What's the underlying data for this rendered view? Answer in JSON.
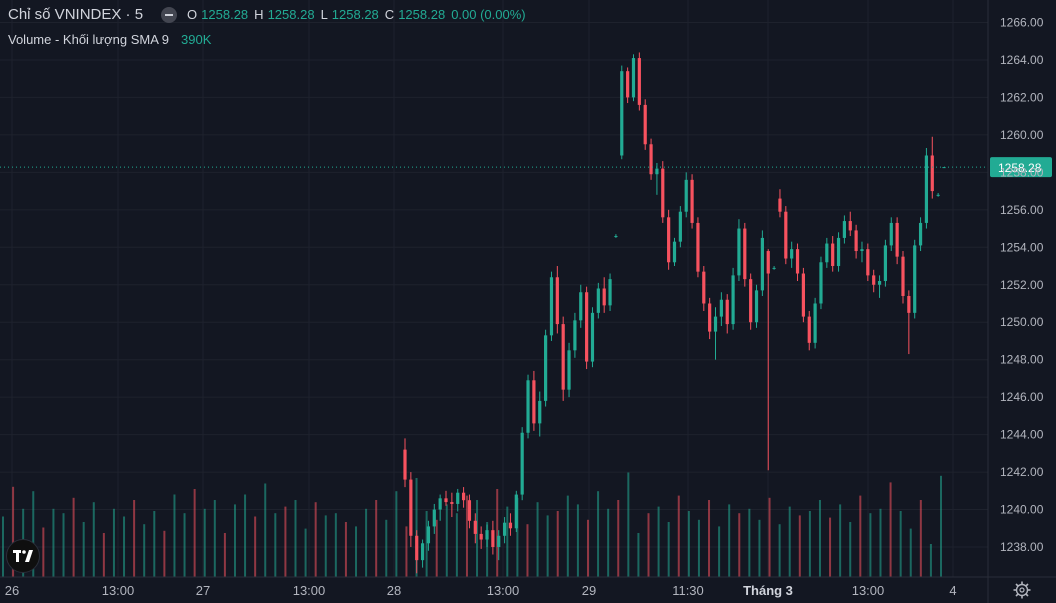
{
  "legend": {
    "title": "Chỉ số VNINDEX · 5",
    "open_label": "O",
    "open": "1258.28",
    "high_label": "H",
    "high": "1258.28",
    "low_label": "L",
    "low": "1258.28",
    "close_label": "C",
    "close": "1258.28",
    "change": "0.00 (0.00%)"
  },
  "volume_legend": {
    "label": "Volume - Khối lượng SMA 9",
    "value": "390K"
  },
  "price_scale": {
    "ticks": [
      "1266.00",
      "1264.00",
      "1262.00",
      "1260.00",
      "1258.00",
      "1256.00",
      "1254.00",
      "1252.00",
      "1250.00",
      "1248.00",
      "1246.00",
      "1244.00",
      "1242.00",
      "1240.00",
      "1238.00"
    ],
    "last_price": "1258.28"
  },
  "time_scale": {
    "labels": [
      "26",
      "13:00",
      "27",
      "13:00",
      "28",
      "13:00",
      "29",
      "11:30",
      "Tháng 3",
      "13:00",
      "4"
    ]
  },
  "colors": {
    "up": "#22ab94",
    "down": "#f7525f",
    "bg": "#131722",
    "grid": "#1e222d",
    "text": "#b2b5be",
    "price_label_bg": "#22ab94"
  },
  "icons": {
    "logo": "tradingview-logo-icon",
    "settings": "gear-icon",
    "legend_toggle": "minus-circle-icon"
  },
  "chart_data": {
    "type": "candlestick",
    "title": "Chỉ số VNINDEX · 5",
    "ylim": [
      1236.4,
      1267.2
    ],
    "last_price": 1258.28,
    "series": [
      {
        "name": "VNINDEX"
      },
      {
        "name": "Volume"
      }
    ],
    "x_labels": [
      "26",
      "13:00",
      "27",
      "13:00",
      "28",
      "13:00",
      "29",
      "11:30",
      "Tháng 3",
      "13:00",
      "4"
    ],
    "candles": [
      {
        "o": 1243.2,
        "h": 1243.8,
        "l": 1241.2,
        "c": 1241.6
      },
      {
        "o": 1241.6,
        "h": 1242.0,
        "l": 1238.0,
        "c": 1238.6
      },
      {
        "o": 1238.6,
        "h": 1238.9,
        "l": 1236.6,
        "c": 1237.3
      },
      {
        "o": 1237.3,
        "h": 1238.4,
        "l": 1236.9,
        "c": 1238.2
      },
      {
        "o": 1238.2,
        "h": 1239.4,
        "l": 1237.8,
        "c": 1239.1
      },
      {
        "o": 1239.1,
        "h": 1240.3,
        "l": 1238.7,
        "c": 1240.0
      },
      {
        "o": 1240.0,
        "h": 1240.8,
        "l": 1239.4,
        "c": 1240.6
      },
      {
        "o": 1240.6,
        "h": 1241.0,
        "l": 1240.2,
        "c": 1240.4
      },
      {
        "o": 1240.4,
        "h": 1240.9,
        "l": 1239.6,
        "c": 1240.3
      },
      {
        "o": 1240.3,
        "h": 1241.1,
        "l": 1239.9,
        "c": 1240.9
      },
      {
        "o": 1240.9,
        "h": 1241.2,
        "l": 1240.1,
        "c": 1240.5
      },
      {
        "o": 1240.5,
        "h": 1240.8,
        "l": 1239.0,
        "c": 1239.4
      },
      {
        "o": 1239.4,
        "h": 1239.8,
        "l": 1238.2,
        "c": 1238.7
      },
      {
        "o": 1238.7,
        "h": 1239.1,
        "l": 1237.9,
        "c": 1238.4
      },
      {
        "o": 1238.4,
        "h": 1239.2,
        "l": 1238.0,
        "c": 1238.9
      },
      {
        "o": 1238.9,
        "h": 1239.4,
        "l": 1237.6,
        "c": 1238.0
      },
      {
        "o": 1238.0,
        "h": 1238.9,
        "l": 1237.3,
        "c": 1238.6
      },
      {
        "o": 1238.6,
        "h": 1239.6,
        "l": 1238.2,
        "c": 1239.3
      },
      {
        "o": 1239.3,
        "h": 1239.8,
        "l": 1238.6,
        "c": 1239.0
      },
      {
        "o": 1239.0,
        "h": 1241.0,
        "l": 1238.8,
        "c": 1240.8
      },
      {
        "o": 1240.8,
        "h": 1244.4,
        "l": 1240.5,
        "c": 1244.1
      },
      {
        "o": 1244.1,
        "h": 1247.2,
        "l": 1243.8,
        "c": 1246.9
      },
      {
        "o": 1246.9,
        "h": 1247.4,
        "l": 1244.2,
        "c": 1244.6
      },
      {
        "o": 1244.6,
        "h": 1246.3,
        "l": 1243.9,
        "c": 1245.8
      },
      {
        "o": 1245.8,
        "h": 1249.6,
        "l": 1245.5,
        "c": 1249.3
      },
      {
        "o": 1249.3,
        "h": 1252.7,
        "l": 1249.0,
        "c": 1252.4
      },
      {
        "o": 1252.4,
        "h": 1253.0,
        "l": 1249.4,
        "c": 1249.9
      },
      {
        "o": 1249.9,
        "h": 1250.3,
        "l": 1245.8,
        "c": 1246.4
      },
      {
        "o": 1246.4,
        "h": 1248.9,
        "l": 1246.0,
        "c": 1248.5
      },
      {
        "o": 1248.5,
        "h": 1250.5,
        "l": 1248.1,
        "c": 1250.1
      },
      {
        "o": 1250.1,
        "h": 1252.0,
        "l": 1249.7,
        "c": 1251.6
      },
      {
        "o": 1251.6,
        "h": 1251.9,
        "l": 1247.5,
        "c": 1247.9
      },
      {
        "o": 1247.9,
        "h": 1250.8,
        "l": 1247.6,
        "c": 1250.5
      },
      {
        "o": 1250.5,
        "h": 1252.1,
        "l": 1250.2,
        "c": 1251.8
      },
      {
        "o": 1251.8,
        "h": 1252.4,
        "l": 1250.5,
        "c": 1250.9
      },
      {
        "o": 1250.9,
        "h": 1252.6,
        "l": 1250.6,
        "c": 1252.3
      },
      {
        "o": 1254.6,
        "h": 1254.7,
        "l": 1254.5,
        "c": 1254.6
      },
      {
        "o": 1258.9,
        "h": 1263.7,
        "l": 1258.7,
        "c": 1263.4
      },
      {
        "o": 1263.4,
        "h": 1263.6,
        "l": 1261.7,
        "c": 1262.0
      },
      {
        "o": 1262.0,
        "h": 1264.3,
        "l": 1261.8,
        "c": 1264.1
      },
      {
        "o": 1264.1,
        "h": 1264.4,
        "l": 1261.3,
        "c": 1261.6
      },
      {
        "o": 1261.6,
        "h": 1261.9,
        "l": 1259.2,
        "c": 1259.5
      },
      {
        "o": 1259.5,
        "h": 1259.8,
        "l": 1257.6,
        "c": 1257.9
      },
      {
        "o": 1257.9,
        "h": 1258.5,
        "l": 1256.8,
        "c": 1258.2
      },
      {
        "o": 1258.2,
        "h": 1258.6,
        "l": 1255.3,
        "c": 1255.6
      },
      {
        "o": 1255.6,
        "h": 1256.0,
        "l": 1252.8,
        "c": 1253.2
      },
      {
        "o": 1253.2,
        "h": 1254.5,
        "l": 1253.0,
        "c": 1254.3
      },
      {
        "o": 1254.3,
        "h": 1256.2,
        "l": 1254.0,
        "c": 1255.9
      },
      {
        "o": 1255.9,
        "h": 1258.0,
        "l": 1255.6,
        "c": 1257.6
      },
      {
        "o": 1257.6,
        "h": 1257.9,
        "l": 1255.0,
        "c": 1255.3
      },
      {
        "o": 1255.3,
        "h": 1255.6,
        "l": 1252.4,
        "c": 1252.7
      },
      {
        "o": 1252.7,
        "h": 1253.0,
        "l": 1250.6,
        "c": 1251.0
      },
      {
        "o": 1251.0,
        "h": 1251.3,
        "l": 1249.1,
        "c": 1249.5
      },
      {
        "o": 1249.5,
        "h": 1250.8,
        "l": 1248.0,
        "c": 1250.3
      },
      {
        "o": 1250.3,
        "h": 1251.6,
        "l": 1249.8,
        "c": 1251.2
      },
      {
        "o": 1251.2,
        "h": 1251.5,
        "l": 1249.4,
        "c": 1249.9
      },
      {
        "o": 1249.9,
        "h": 1252.9,
        "l": 1249.6,
        "c": 1252.5
      },
      {
        "o": 1252.5,
        "h": 1255.5,
        "l": 1252.2,
        "c": 1255.0
      },
      {
        "o": 1255.0,
        "h": 1255.3,
        "l": 1251.9,
        "c": 1252.3
      },
      {
        "o": 1252.3,
        "h": 1252.6,
        "l": 1249.6,
        "c": 1250.0
      },
      {
        "o": 1250.0,
        "h": 1252.0,
        "l": 1249.7,
        "c": 1251.7
      },
      {
        "o": 1251.7,
        "h": 1254.9,
        "l": 1251.4,
        "c": 1254.5
      },
      {
        "o": 1253.8,
        "h": 1253.9,
        "l": 1242.1,
        "c": 1252.6
      },
      {
        "o": 1252.9,
        "h": 1253.0,
        "l": 1252.8,
        "c": 1252.9
      },
      {
        "o": 1256.6,
        "h": 1257.1,
        "l": 1255.6,
        "c": 1255.9
      },
      {
        "o": 1255.9,
        "h": 1256.2,
        "l": 1253.1,
        "c": 1253.4
      },
      {
        "o": 1253.4,
        "h": 1254.3,
        "l": 1252.9,
        "c": 1253.9
      },
      {
        "o": 1253.9,
        "h": 1254.2,
        "l": 1252.2,
        "c": 1252.6
      },
      {
        "o": 1252.6,
        "h": 1252.9,
        "l": 1250.0,
        "c": 1250.3
      },
      {
        "o": 1250.3,
        "h": 1250.6,
        "l": 1248.5,
        "c": 1248.9
      },
      {
        "o": 1248.9,
        "h": 1251.3,
        "l": 1248.6,
        "c": 1251.0
      },
      {
        "o": 1251.0,
        "h": 1253.5,
        "l": 1250.7,
        "c": 1253.2
      },
      {
        "o": 1253.2,
        "h": 1254.5,
        "l": 1252.9,
        "c": 1254.2
      },
      {
        "o": 1254.2,
        "h": 1254.6,
        "l": 1252.7,
        "c": 1253.0
      },
      {
        "o": 1253.0,
        "h": 1254.8,
        "l": 1252.7,
        "c": 1254.5
      },
      {
        "o": 1254.5,
        "h": 1255.7,
        "l": 1254.2,
        "c": 1255.4
      },
      {
        "o": 1255.4,
        "h": 1255.9,
        "l": 1254.6,
        "c": 1254.9
      },
      {
        "o": 1254.9,
        "h": 1255.2,
        "l": 1253.4,
        "c": 1253.8
      },
      {
        "o": 1253.8,
        "h": 1254.3,
        "l": 1253.2,
        "c": 1253.9
      },
      {
        "o": 1253.9,
        "h": 1254.2,
        "l": 1252.2,
        "c": 1252.5
      },
      {
        "o": 1252.5,
        "h": 1252.8,
        "l": 1251.6,
        "c": 1252.0
      },
      {
        "o": 1252.0,
        "h": 1252.5,
        "l": 1251.3,
        "c": 1252.2
      },
      {
        "o": 1252.2,
        "h": 1254.4,
        "l": 1251.9,
        "c": 1254.1
      },
      {
        "o": 1254.1,
        "h": 1255.6,
        "l": 1253.8,
        "c": 1255.3
      },
      {
        "o": 1255.3,
        "h": 1255.6,
        "l": 1253.1,
        "c": 1253.5
      },
      {
        "o": 1253.5,
        "h": 1253.8,
        "l": 1251.0,
        "c": 1251.4
      },
      {
        "o": 1251.4,
        "h": 1251.7,
        "l": 1248.3,
        "c": 1250.5
      },
      {
        "o": 1250.5,
        "h": 1254.4,
        "l": 1250.2,
        "c": 1254.1
      },
      {
        "o": 1254.1,
        "h": 1255.6,
        "l": 1253.8,
        "c": 1255.3
      },
      {
        "o": 1255.3,
        "h": 1259.3,
        "l": 1255.0,
        "c": 1258.9
      },
      {
        "o": 1258.9,
        "h": 1259.9,
        "l": 1256.6,
        "c": 1257.0
      },
      {
        "o": 1256.8,
        "h": 1256.9,
        "l": 1256.7,
        "c": 1256.8
      },
      {
        "o": 1258.28,
        "h": 1258.28,
        "l": 1258.28,
        "c": 1258.28
      }
    ],
    "volume_relative": [
      0.55,
      0.82,
      0.62,
      0.78,
      0.45,
      0.62,
      0.58,
      0.72,
      0.5,
      0.68,
      0.4,
      0.62,
      0.55,
      0.7,
      0.48,
      0.6,
      0.42,
      0.75,
      0.58,
      0.8,
      0.62,
      0.7,
      0.4,
      0.66,
      0.75,
      0.55,
      0.85,
      0.58,
      0.64,
      0.7,
      0.44,
      0.68,
      0.56,
      0.58,
      0.5,
      0.46,
      0.62,
      0.7,
      0.52,
      0.78,
      0.46,
      0.9,
      0.6,
      0.52,
      0.66,
      0.58,
      0.74,
      0.7,
      0.5,
      0.8,
      0.64,
      0.72,
      0.48,
      0.68,
      0.56,
      0.6,
      0.74,
      0.66,
      0.52,
      0.78,
      0.62,
      0.7,
      0.95,
      0.4,
      0.58,
      0.64,
      0.5,
      0.74,
      0.6,
      0.52,
      0.7,
      0.46,
      0.66,
      0.58,
      0.62,
      0.52,
      0.72,
      0.48,
      0.64,
      0.56,
      0.6,
      0.7,
      0.54,
      0.66,
      0.5,
      0.74,
      0.58,
      0.62,
      0.86,
      0.6,
      0.44,
      0.7,
      0.3,
      0.92
    ]
  }
}
